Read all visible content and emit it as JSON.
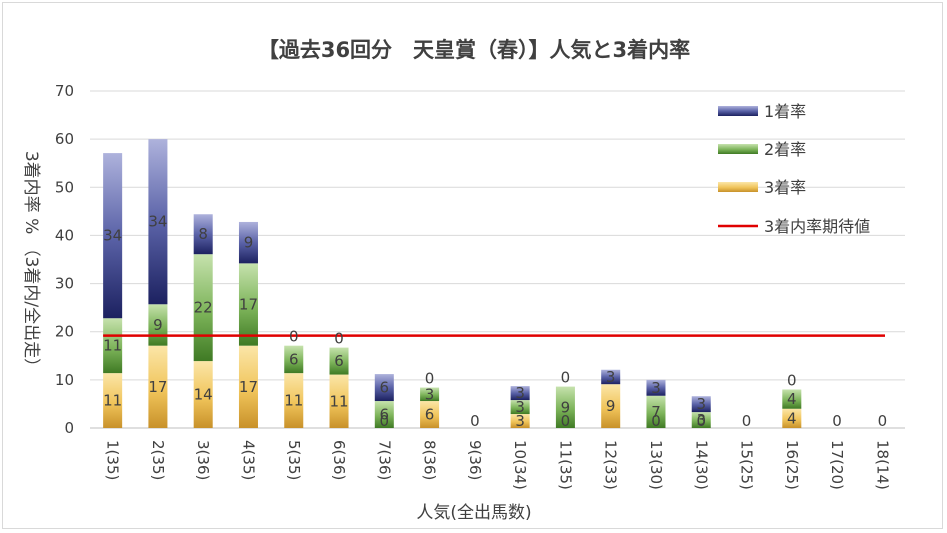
{
  "chart_data": {
    "type": "bar",
    "stacked": true,
    "title": "【過去36回分　天皇賞（春）】人気と3着内率",
    "xlabel": "人気(全出馬数)",
    "ylabel": "3着内率 % （3着内/全出走）",
    "categories": [
      "1(35)",
      "2(35)",
      "3(36)",
      "4(35)",
      "5(35)",
      "6(36)",
      "7(36)",
      "8(36)",
      "9(36)",
      "10(34)",
      "11(35)",
      "12(33)",
      "13(30)",
      "14(30)",
      "15(25)",
      "16(25)",
      "17(20)",
      "18(14)"
    ],
    "series": [
      {
        "name": "3着率",
        "color": "#e9b94a",
        "values": [
          11.4,
          17.1,
          13.9,
          17.1,
          11.4,
          11.1,
          0,
          5.6,
          0,
          2.9,
          0,
          9.1,
          0,
          0,
          0,
          4,
          0,
          0
        ],
        "labels": [
          "11",
          "17",
          "14",
          "17",
          "11",
          "11",
          "0",
          "6",
          "0",
          "3",
          "0",
          "9",
          "0",
          "0",
          "0",
          "4",
          "0",
          "0"
        ]
      },
      {
        "name": "2着率",
        "color": "#5f9a3c",
        "values": [
          11.4,
          8.6,
          22.2,
          17.1,
          5.7,
          5.6,
          5.6,
          2.8,
          0,
          2.9,
          8.6,
          0,
          6.7,
          3.3,
          0,
          4,
          0,
          0
        ],
        "labels": [
          "11",
          "9",
          "22",
          "17",
          "6",
          "6",
          "6",
          "3",
          "",
          "3",
          "9",
          "",
          "7",
          "3",
          "",
          "4",
          "",
          ""
        ]
      },
      {
        "name": "1着率",
        "color": "#2e3878",
        "values": [
          34.3,
          34.3,
          8.3,
          8.6,
          0,
          0,
          5.6,
          0,
          0,
          2.9,
          0,
          3,
          3.3,
          3.3,
          0,
          0,
          0,
          0
        ],
        "labels": [
          "34",
          "34",
          "8",
          "9",
          "0",
          "0",
          "6",
          "0",
          "",
          "3",
          "0",
          "3",
          "3",
          "3",
          "",
          "0",
          "",
          ""
        ]
      }
    ],
    "expected_value": {
      "name": "3着内率期待値",
      "value": 19.2,
      "color": "#e00000"
    },
    "ylim": [
      0,
      70
    ],
    "yticks": [
      0,
      10,
      20,
      30,
      40,
      50,
      60,
      70
    ],
    "grid": true,
    "legend_position": "top-right"
  }
}
